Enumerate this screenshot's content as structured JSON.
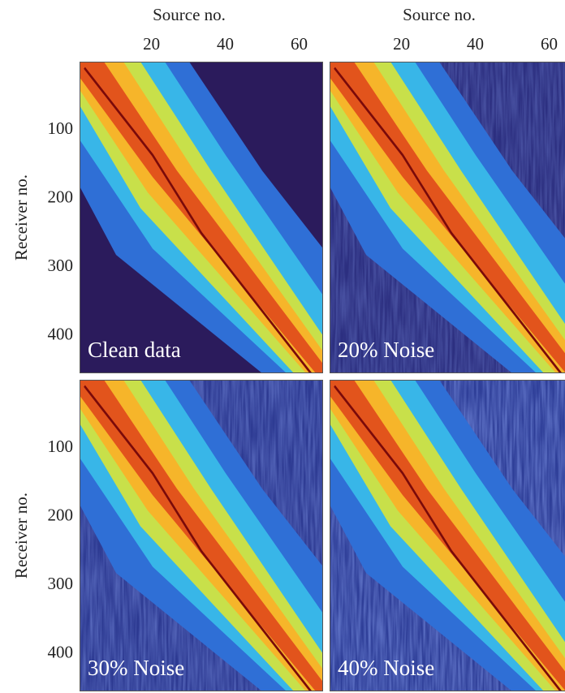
{
  "chart_data": [
    {
      "type": "heatmap",
      "annotation": "Clean data",
      "xlabel": "Source no.",
      "ylabel": "Receiver no.",
      "xlim": [
        0.5,
        66.5
      ],
      "ylim": [
        454.5,
        0.5
      ],
      "xticks": [
        20,
        40,
        60
      ],
      "yticks": [
        100,
        200,
        300,
        400
      ]
    },
    {
      "type": "heatmap",
      "annotation": "20% Noise",
      "xlabel": "Source no.",
      "xlim": [
        0.5,
        66.5
      ],
      "ylim": [
        454.5,
        0.5
      ],
      "xticks": [
        20,
        40,
        60
      ]
    },
    {
      "type": "heatmap",
      "annotation": "30% Noise",
      "ylabel": "Receiver no.",
      "xlim": [
        0.5,
        66.5
      ],
      "ylim": [
        454.5,
        0.5
      ],
      "yticks": [
        100,
        200,
        300,
        400
      ]
    },
    {
      "type": "heatmap",
      "annotation": "40% Noise",
      "xlim": [
        0.5,
        66.5
      ],
      "ylim": [
        454.5,
        0.5
      ]
    }
  ]
}
